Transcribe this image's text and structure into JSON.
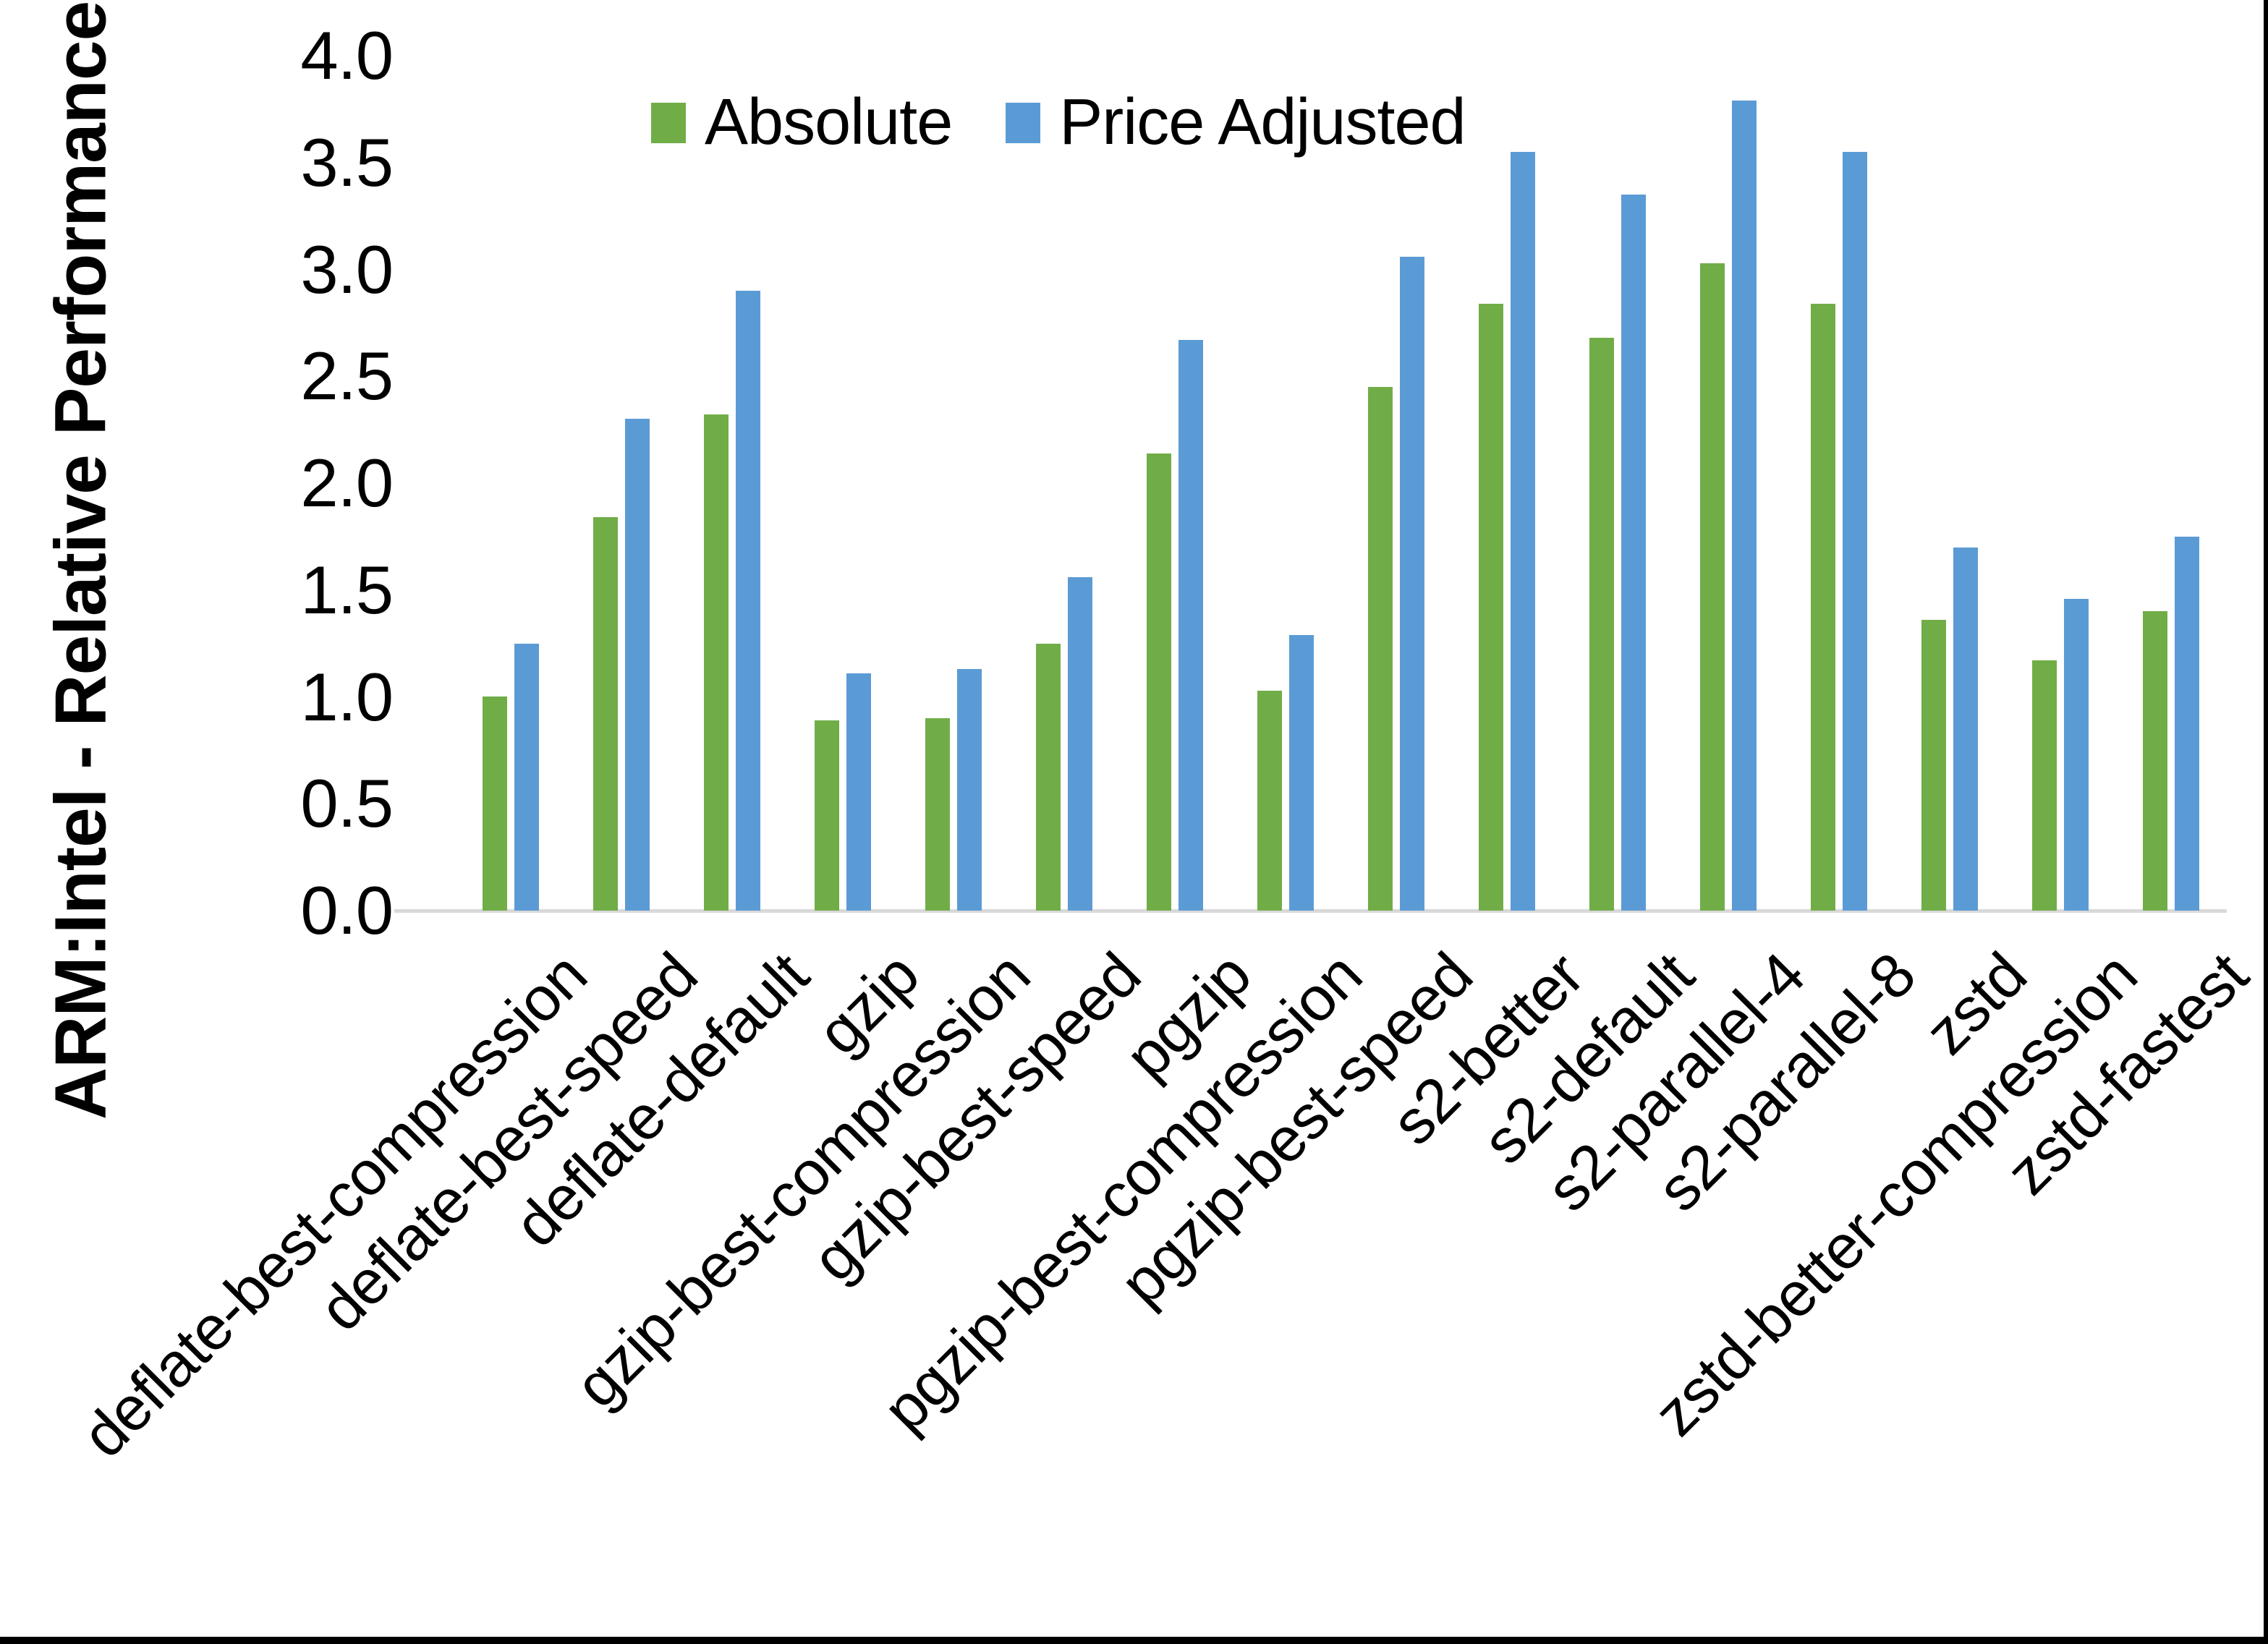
{
  "chart_data": {
    "type": "bar",
    "title": "",
    "ylabel": "ARM:Intel - Relative Performance",
    "xlabel": "",
    "ylim": [
      0.0,
      4.0
    ],
    "ytick_step": 0.5,
    "ytick_labels": [
      "0.0",
      "0.5",
      "1.0",
      "1.5",
      "2.0",
      "2.5",
      "3.0",
      "3.5",
      "4.0"
    ],
    "grid": false,
    "legend_position": "top-center",
    "categories": [
      "deflate-best-compression",
      "deflate-best-speed",
      "deflate-default",
      "gzip",
      "gzip-best-compression",
      "gzip-best-speed",
      "pgzip",
      "pgzip-best-compression",
      "pgzip-best-speed",
      "s2-better",
      "s2-default",
      "s2-parallel-4",
      "s2-parallel-8",
      "zstd",
      "zstd-better-compression",
      "zstd-fastest"
    ],
    "series": [
      {
        "name": "Absolute",
        "color": "#70AD47",
        "values": [
          1.0,
          1.84,
          2.32,
          0.89,
          0.9,
          1.25,
          2.14,
          1.03,
          2.45,
          2.84,
          2.68,
          3.03,
          2.84,
          1.36,
          1.17,
          1.4
        ]
      },
      {
        "name": "Price Adjusted",
        "color": "#5B9BD5",
        "values": [
          1.25,
          2.3,
          2.9,
          1.11,
          1.13,
          1.56,
          2.67,
          1.29,
          3.06,
          3.55,
          3.35,
          3.79,
          3.55,
          1.7,
          1.46,
          1.75
        ]
      }
    ]
  },
  "legend": {
    "items": [
      {
        "label": "Absolute",
        "color": "#70AD47"
      },
      {
        "label": "Price Adjusted",
        "color": "#5B9BD5"
      }
    ]
  },
  "colors": {
    "background": "#FFFFFF",
    "axis_line": "#D9D9D9",
    "text": "#000000",
    "border": "#000000",
    "series_absolute": "#70AD47",
    "series_price_adjusted": "#5B9BD5"
  }
}
